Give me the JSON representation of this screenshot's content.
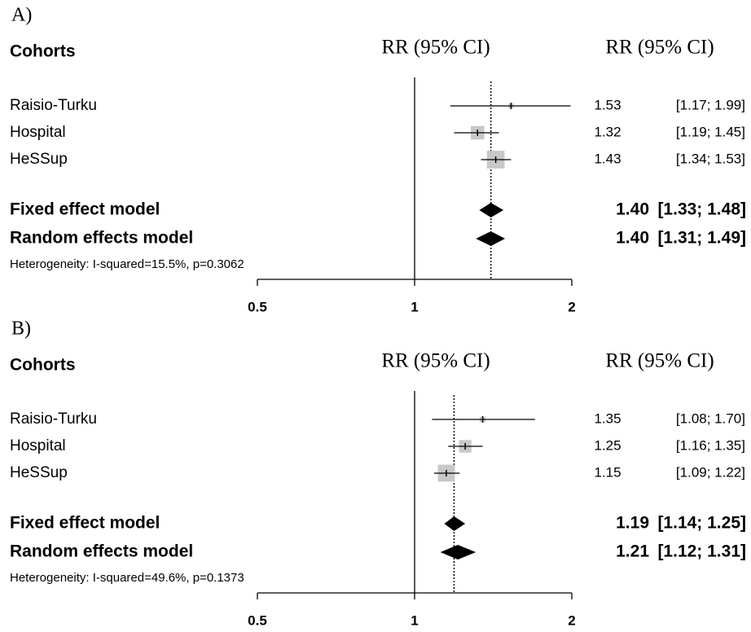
{
  "chart_data": [
    {
      "type": "forest",
      "label": "A)",
      "row_header": "Cohorts",
      "axis_header": "RR (95% CI)",
      "value_header": "RR (95% CI)",
      "categories": [
        "Raisio-Turku",
        "Hospital",
        "HeSSup"
      ],
      "values": [
        1.53,
        1.32,
        1.43
      ],
      "lower": [
        1.17,
        1.19,
        1.34
      ],
      "upper": [
        1.99,
        1.45,
        1.53
      ],
      "ci_labels": [
        "[1.17; 1.99]",
        "[1.19; 1.45]",
        "[1.34; 1.53]"
      ],
      "weights": [
        5,
        35,
        60
      ],
      "summary": [
        {
          "name": "Fixed effect model",
          "value": 1.4,
          "value_label": "1.40",
          "lower": 1.33,
          "upper": 1.48,
          "ci_label": "[1.33; 1.48]"
        },
        {
          "name": "Random effects model",
          "value": 1.4,
          "value_label": "1.40",
          "lower": 1.31,
          "upper": 1.49,
          "ci_label": "[1.31; 1.49]"
        }
      ],
      "heterogeneity": "Heterogeneity: I-squared=15.5%, p=0.3062",
      "log_scale": true,
      "null_line": 1,
      "xlim": [
        0.5,
        2
      ],
      "xticks": [
        0.5,
        1,
        2
      ],
      "box_color": "#c8c8c8"
    },
    {
      "type": "forest",
      "label": "B)",
      "row_header": "Cohorts",
      "axis_header": "RR (95% CI)",
      "value_header": "RR (95% CI)",
      "categories": [
        "Raisio-Turku",
        "Hospital",
        "HeSSup"
      ],
      "values": [
        1.35,
        1.25,
        1.15
      ],
      "lower": [
        1.08,
        1.16,
        1.09
      ],
      "upper": [
        1.7,
        1.35,
        1.22
      ],
      "ci_labels": [
        "[1.08; 1.70]",
        "[1.16; 1.35]",
        "[1.09; 1.22]"
      ],
      "weights": [
        6,
        30,
        55
      ],
      "summary": [
        {
          "name": "Fixed effect model",
          "value": 1.19,
          "value_label": "1.19",
          "lower": 1.14,
          "upper": 1.25,
          "ci_label": "[1.14; 1.25]"
        },
        {
          "name": "Random effects model",
          "value": 1.21,
          "value_label": "1.21",
          "lower": 1.12,
          "upper": 1.31,
          "ci_label": "[1.12; 1.31]"
        }
      ],
      "heterogeneity": "Heterogeneity: I-squared=49.6%, p=0.1373",
      "log_scale": true,
      "null_line": 1,
      "xlim": [
        0.5,
        2
      ],
      "xticks": [
        0.5,
        1,
        2
      ],
      "box_color": "#c8c8c8"
    }
  ]
}
